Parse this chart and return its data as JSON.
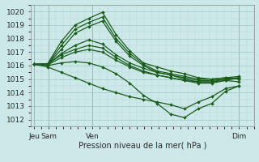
{
  "xlabel": "Pression niveau de la mer( hPa )",
  "bg_color": "#cce8e8",
  "grid_minor_color": "#b8d8d8",
  "grid_major_color": "#a0c8c8",
  "line_color": "#1a5c1a",
  "ylim": [
    1011.5,
    1020.5
  ],
  "yticks": [
    1012,
    1013,
    1014,
    1015,
    1016,
    1017,
    1018,
    1019,
    1020
  ],
  "xtick_labels": [
    "Jeu",
    "Sam",
    "Ven",
    "",
    "Dim"
  ],
  "xtick_positions": [
    0,
    0.5,
    2.0,
    4.5,
    7.0
  ],
  "xlim": [
    -0.1,
    7.5
  ],
  "vlines": [
    0,
    0.5,
    2.0,
    7.0
  ],
  "series": [
    [
      1016.1,
      1016.15,
      1017.8,
      1019.0,
      1019.5,
      1019.95,
      1018.3,
      1017.1,
      1016.2,
      1015.9,
      1015.6,
      1015.4,
      1015.1,
      1015.0,
      1015.1,
      1015.2
    ],
    [
      1016.1,
      1016.1,
      1017.5,
      1018.7,
      1019.2,
      1019.6,
      1018.0,
      1016.9,
      1016.1,
      1015.6,
      1015.4,
      1015.2,
      1015.0,
      1015.0,
      1015.1,
      1015.0
    ],
    [
      1016.1,
      1016.1,
      1017.2,
      1018.4,
      1018.9,
      1019.3,
      1017.8,
      1016.7,
      1016.0,
      1015.5,
      1015.3,
      1015.0,
      1014.8,
      1014.8,
      1014.9,
      1014.8
    ],
    [
      1016.1,
      1016.1,
      1016.9,
      1017.5,
      1017.9,
      1017.6,
      1016.8,
      1016.2,
      1015.8,
      1015.5,
      1015.3,
      1015.1,
      1014.9,
      1014.9,
      1015.0,
      1015.1
    ],
    [
      1016.1,
      1016.1,
      1016.8,
      1017.2,
      1017.5,
      1017.3,
      1016.6,
      1016.0,
      1015.6,
      1015.3,
      1015.1,
      1014.9,
      1014.8,
      1014.8,
      1015.0,
      1015.1
    ],
    [
      1016.1,
      1016.05,
      1016.6,
      1017.0,
      1017.2,
      1017.0,
      1016.4,
      1015.9,
      1015.5,
      1015.3,
      1015.1,
      1014.9,
      1014.7,
      1014.7,
      1014.9,
      1015.1
    ],
    [
      1016.1,
      1016.0,
      1016.2,
      1016.3,
      1016.2,
      1015.9,
      1015.4,
      1014.7,
      1013.8,
      1013.2,
      1012.4,
      1012.15,
      1012.8,
      1013.2,
      1014.1,
      1014.5
    ],
    [
      1016.1,
      1015.9,
      1015.5,
      1015.1,
      1014.7,
      1014.3,
      1014.0,
      1013.7,
      1013.5,
      1013.3,
      1013.1,
      1012.8,
      1013.3,
      1013.7,
      1014.3,
      1014.5
    ]
  ],
  "marker_size": 2.0,
  "line_width": 0.9,
  "font_size_ticks": 6.5,
  "font_size_xlabel": 7.0
}
